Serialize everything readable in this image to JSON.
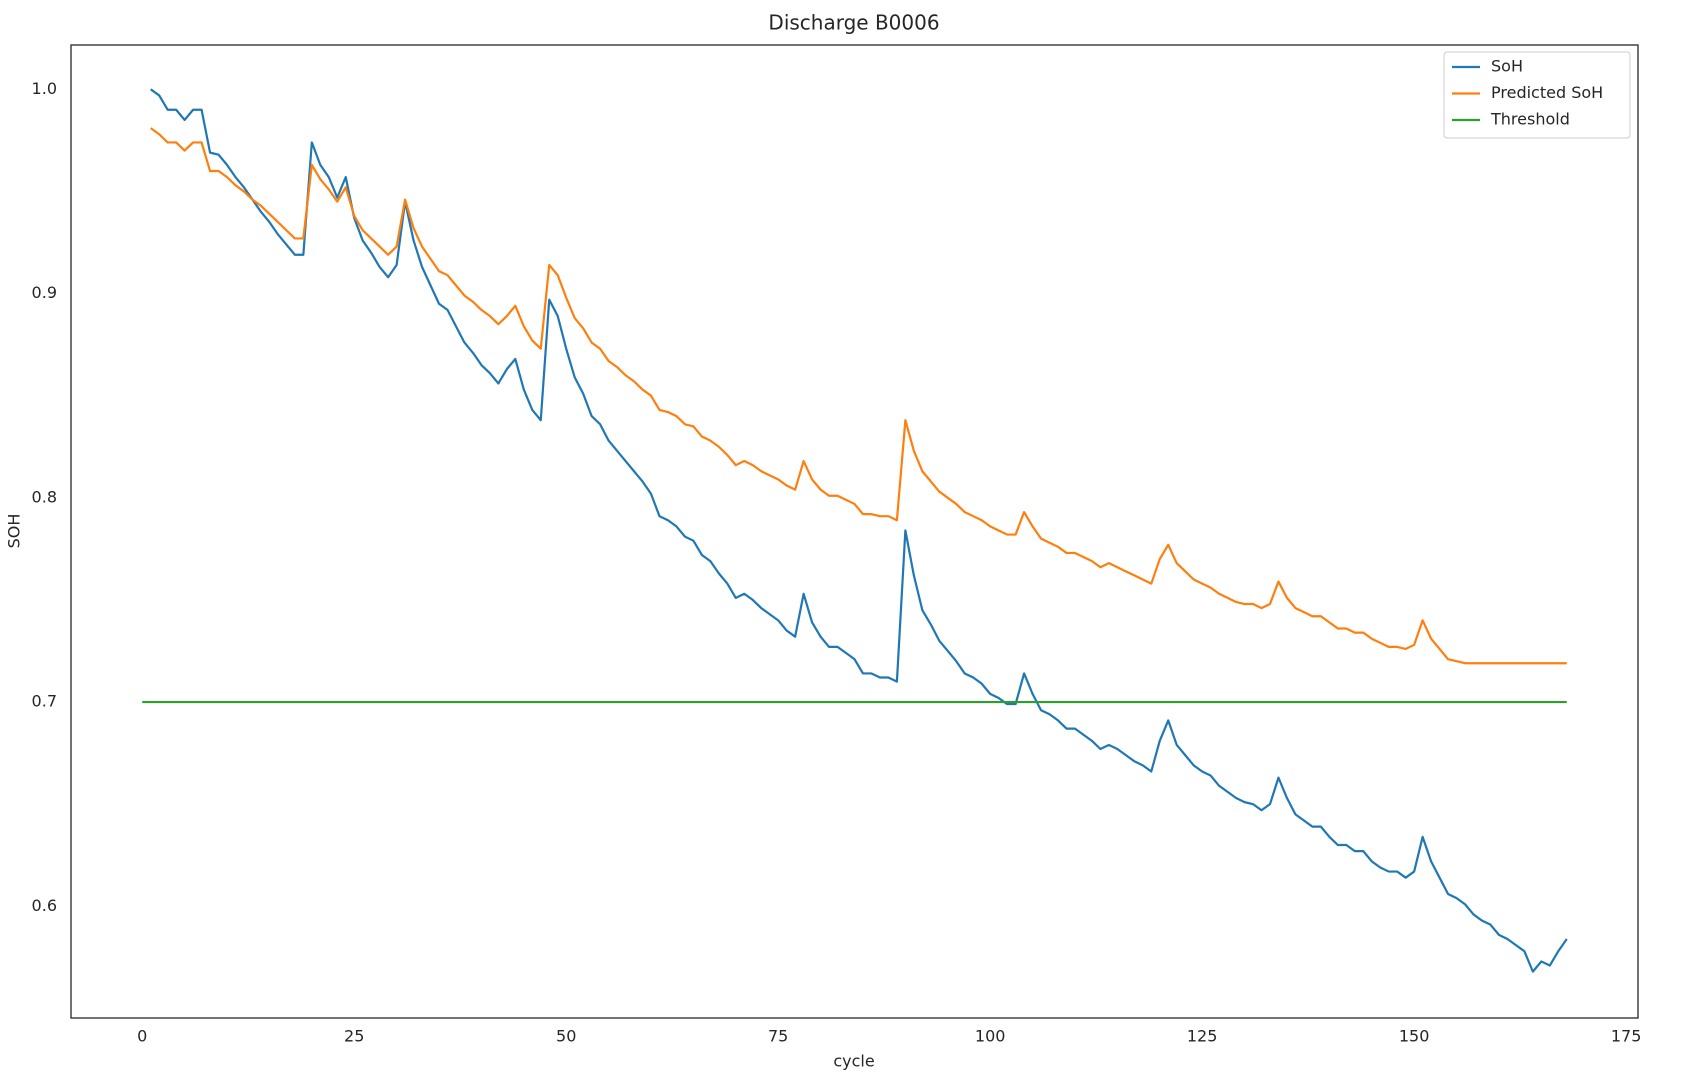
{
  "chart_data": {
    "type": "line",
    "title": "Discharge B0006",
    "xlabel": "cycle",
    "ylabel": "SOH",
    "x": [
      1,
      2,
      3,
      4,
      5,
      6,
      7,
      8,
      9,
      10,
      11,
      12,
      13,
      14,
      15,
      16,
      17,
      18,
      19,
      20,
      21,
      22,
      23,
      24,
      25,
      26,
      27,
      28,
      29,
      30,
      31,
      32,
      33,
      34,
      35,
      36,
      37,
      38,
      39,
      40,
      41,
      42,
      43,
      44,
      45,
      46,
      47,
      48,
      49,
      50,
      51,
      52,
      53,
      54,
      55,
      56,
      57,
      58,
      59,
      60,
      61,
      62,
      63,
      64,
      65,
      66,
      67,
      68,
      69,
      70,
      71,
      72,
      73,
      74,
      75,
      76,
      77,
      78,
      79,
      80,
      81,
      82,
      83,
      84,
      85,
      86,
      87,
      88,
      89,
      90,
      91,
      92,
      93,
      94,
      95,
      96,
      97,
      98,
      99,
      100,
      101,
      102,
      103,
      104,
      105,
      106,
      107,
      108,
      109,
      110,
      111,
      112,
      113,
      114,
      115,
      116,
      117,
      118,
      119,
      120,
      121,
      122,
      123,
      124,
      125,
      126,
      127,
      128,
      129,
      130,
      131,
      132,
      133,
      134,
      135,
      136,
      137,
      138,
      139,
      140,
      141,
      142,
      143,
      144,
      145,
      146,
      147,
      148,
      149,
      150,
      151,
      152,
      153,
      154,
      155,
      156,
      157,
      158,
      159,
      160,
      161,
      162,
      163,
      164,
      165,
      166,
      167,
      168
    ],
    "series": [
      {
        "name": "SoH",
        "color": "#1f77b4",
        "values": [
          1.0,
          0.997,
          0.99,
          0.99,
          0.985,
          0.99,
          0.99,
          0.969,
          0.968,
          0.963,
          0.957,
          0.952,
          0.946,
          0.94,
          0.935,
          0.929,
          0.924,
          0.919,
          0.919,
          0.974,
          0.963,
          0.957,
          0.947,
          0.957,
          0.937,
          0.926,
          0.92,
          0.913,
          0.908,
          0.914,
          0.945,
          0.926,
          0.913,
          0.904,
          0.895,
          0.892,
          0.884,
          0.876,
          0.871,
          0.865,
          0.861,
          0.856,
          0.863,
          0.868,
          0.853,
          0.843,
          0.838,
          0.897,
          0.889,
          0.873,
          0.859,
          0.851,
          0.84,
          0.836,
          0.828,
          0.823,
          0.818,
          0.813,
          0.808,
          0.802,
          0.791,
          0.789,
          0.786,
          0.781,
          0.779,
          0.772,
          0.769,
          0.763,
          0.758,
          0.751,
          0.753,
          0.75,
          0.746,
          0.743,
          0.74,
          0.735,
          0.732,
          0.753,
          0.739,
          0.732,
          0.727,
          0.727,
          0.724,
          0.721,
          0.714,
          0.714,
          0.712,
          0.712,
          0.71,
          0.784,
          0.762,
          0.745,
          0.738,
          0.73,
          0.725,
          0.72,
          0.714,
          0.712,
          0.709,
          0.704,
          0.702,
          0.699,
          0.699,
          0.714,
          0.704,
          0.696,
          0.694,
          0.691,
          0.687,
          0.687,
          0.684,
          0.681,
          0.677,
          0.679,
          0.677,
          0.674,
          0.671,
          0.669,
          0.666,
          0.681,
          0.691,
          0.679,
          0.674,
          0.669,
          0.666,
          0.664,
          0.659,
          0.656,
          0.653,
          0.651,
          0.65,
          0.647,
          0.65,
          0.663,
          0.653,
          0.645,
          0.642,
          0.639,
          0.639,
          0.634,
          0.63,
          0.63,
          0.627,
          0.627,
          0.622,
          0.619,
          0.617,
          0.617,
          0.614,
          0.617,
          0.634,
          0.622,
          0.614,
          0.606,
          0.604,
          0.601,
          0.596,
          0.593,
          0.591,
          0.586,
          0.584,
          0.581,
          0.578,
          0.568,
          0.573,
          0.571,
          0.578,
          0.584
        ]
      },
      {
        "name": "Predicted SoH",
        "color": "#ff7f0e",
        "values": [
          0.981,
          0.978,
          0.974,
          0.974,
          0.97,
          0.974,
          0.974,
          0.96,
          0.96,
          0.957,
          0.953,
          0.95,
          0.946,
          0.943,
          0.939,
          0.935,
          0.931,
          0.927,
          0.927,
          0.963,
          0.956,
          0.951,
          0.945,
          0.952,
          0.938,
          0.931,
          0.927,
          0.923,
          0.919,
          0.923,
          0.946,
          0.932,
          0.923,
          0.917,
          0.911,
          0.909,
          0.904,
          0.899,
          0.896,
          0.892,
          0.889,
          0.885,
          0.889,
          0.894,
          0.884,
          0.877,
          0.873,
          0.914,
          0.909,
          0.898,
          0.888,
          0.883,
          0.876,
          0.873,
          0.867,
          0.864,
          0.86,
          0.857,
          0.853,
          0.85,
          0.843,
          0.842,
          0.84,
          0.836,
          0.835,
          0.83,
          0.828,
          0.825,
          0.821,
          0.816,
          0.818,
          0.816,
          0.813,
          0.811,
          0.809,
          0.806,
          0.804,
          0.818,
          0.809,
          0.804,
          0.801,
          0.801,
          0.799,
          0.797,
          0.792,
          0.792,
          0.791,
          0.791,
          0.789,
          0.838,
          0.823,
          0.813,
          0.808,
          0.803,
          0.8,
          0.797,
          0.793,
          0.791,
          0.789,
          0.786,
          0.784,
          0.782,
          0.782,
          0.793,
          0.786,
          0.78,
          0.778,
          0.776,
          0.773,
          0.773,
          0.771,
          0.769,
          0.766,
          0.768,
          0.766,
          0.764,
          0.762,
          0.76,
          0.758,
          0.77,
          0.777,
          0.768,
          0.764,
          0.76,
          0.758,
          0.756,
          0.753,
          0.751,
          0.749,
          0.748,
          0.748,
          0.746,
          0.748,
          0.759,
          0.751,
          0.746,
          0.744,
          0.742,
          0.742,
          0.739,
          0.736,
          0.736,
          0.734,
          0.734,
          0.731,
          0.729,
          0.727,
          0.727,
          0.726,
          0.728,
          0.74,
          0.731,
          0.726,
          0.721,
          0.72,
          0.719,
          0.719,
          0.719,
          0.719,
          0.719,
          0.719,
          0.719,
          0.719,
          0.719,
          0.719,
          0.719,
          0.719,
          0.719
        ]
      },
      {
        "name": "Threshold",
        "color": "#2ca02c",
        "x": [
          0,
          168
        ],
        "values": [
          0.7,
          0.7
        ]
      }
    ],
    "xlim": [
      -8.4,
      176.4
    ],
    "ylim": [
      0.5453,
      1.0217
    ],
    "xticks": [
      0,
      25,
      50,
      75,
      100,
      125,
      150,
      175
    ],
    "yticks": [
      0.6,
      0.7,
      0.8,
      0.9,
      {
        "value": 1,
        "label": "1.0"
      }
    ],
    "grid": false,
    "legend": "upper right"
  }
}
